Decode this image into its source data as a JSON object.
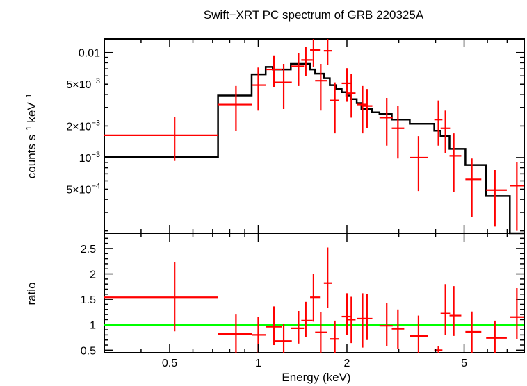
{
  "chart_data": {
    "title": "Swift−XRT PC spectrum of GRB 220325A",
    "type": "scatter",
    "colors": {
      "data": "#ff0000",
      "model": "#000000",
      "unity": "#00ff00",
      "frame": "#000000"
    },
    "xlabel": "Energy (keV)",
    "xscale": "log",
    "xlim": [
      0.3,
      8.0
    ],
    "x_ticks": [
      {
        "value": 0.5,
        "label": "0.5"
      },
      {
        "value": 1,
        "label": "1"
      },
      {
        "value": 2,
        "label": "2"
      },
      {
        "value": 5,
        "label": "5"
      }
    ],
    "spectrum_panel": {
      "ylabel_main": "counts s",
      "ylabel_exp1": "−1",
      "ylabel_mid": " keV",
      "ylabel_exp2": "−1",
      "yscale": "log",
      "ylim": [
        0.00019,
        0.0135
      ],
      "y_ticks": [
        {
          "value": 0.01,
          "mantissa": "0.01",
          "exponent": ""
        },
        {
          "value": 0.005,
          "mantissa": "5×10",
          "exponent": "−3"
        },
        {
          "value": 0.002,
          "mantissa": "2×10",
          "exponent": "−3"
        },
        {
          "value": 0.001,
          "mantissa": "10",
          "exponent": "−3"
        },
        {
          "value": 0.0005,
          "mantissa": "5×10",
          "exponent": "−4"
        }
      ],
      "data_points": [
        {
          "x": 0.52,
          "xlo": 0.3,
          "xhi": 0.73,
          "y": 0.00163,
          "ylo": 0.00093,
          "yhi": 0.00245
        },
        {
          "x": 0.84,
          "xlo": 0.73,
          "xhi": 0.95,
          "y": 0.0032,
          "ylo": 0.0018,
          "yhi": 0.0048
        },
        {
          "x": 1.0,
          "xlo": 0.95,
          "xhi": 1.06,
          "y": 0.0049,
          "ylo": 0.0028,
          "yhi": 0.0072
        },
        {
          "x": 1.13,
          "xlo": 1.06,
          "xhi": 1.2,
          "y": 0.0069,
          "ylo": 0.0047,
          "yhi": 0.0094
        },
        {
          "x": 1.22,
          "xlo": 1.12,
          "xhi": 1.3,
          "y": 0.0052,
          "ylo": 0.0029,
          "yhi": 0.0078
        },
        {
          "x": 1.37,
          "xlo": 1.29,
          "xhi": 1.43,
          "y": 0.0074,
          "ylo": 0.0048,
          "yhi": 0.0099
        },
        {
          "x": 1.45,
          "xlo": 1.4,
          "xhi": 1.53,
          "y": 0.0085,
          "ylo": 0.006,
          "yhi": 0.0113
        },
        {
          "x": 1.54,
          "xlo": 1.5,
          "xhi": 1.62,
          "y": 0.0106,
          "ylo": 0.0073,
          "yhi": 0.0135
        },
        {
          "x": 1.63,
          "xlo": 1.56,
          "xhi": 1.71,
          "y": 0.0054,
          "ylo": 0.0028,
          "yhi": 0.0078
        },
        {
          "x": 1.72,
          "xlo": 1.67,
          "xhi": 1.78,
          "y": 0.0104,
          "ylo": 0.0076,
          "yhi": 0.0135
        },
        {
          "x": 1.82,
          "xlo": 1.75,
          "xhi": 1.88,
          "y": 0.0035,
          "ylo": 0.0017,
          "yhi": 0.0052
        },
        {
          "x": 2.0,
          "xlo": 1.92,
          "xhi": 2.07,
          "y": 0.0051,
          "ylo": 0.0034,
          "yhi": 0.0071
        },
        {
          "x": 2.07,
          "xlo": 1.99,
          "xhi": 2.14,
          "y": 0.0041,
          "ylo": 0.0024,
          "yhi": 0.0063
        },
        {
          "x": 2.26,
          "xlo": 2.16,
          "xhi": 2.35,
          "y": 0.0032,
          "ylo": 0.0017,
          "yhi": 0.0048
        },
        {
          "x": 2.34,
          "xlo": 2.24,
          "xhi": 2.44,
          "y": 0.0031,
          "ylo": 0.0019,
          "yhi": 0.0045
        },
        {
          "x": 2.73,
          "xlo": 2.58,
          "xhi": 2.86,
          "y": 0.0024,
          "ylo": 0.0013,
          "yhi": 0.0037
        },
        {
          "x": 2.98,
          "xlo": 2.84,
          "xhi": 3.13,
          "y": 0.0019,
          "ylo": 0.00098,
          "yhi": 0.0031
        },
        {
          "x": 3.5,
          "xlo": 3.27,
          "xhi": 3.76,
          "y": 0.001,
          "ylo": 0.00048,
          "yhi": 0.0016
        },
        {
          "x": 4.09,
          "xlo": 3.96,
          "xhi": 4.22,
          "y": 0.0023,
          "ylo": 0.0013,
          "yhi": 0.0035
        },
        {
          "x": 4.32,
          "xlo": 4.16,
          "xhi": 4.48,
          "y": 0.0019,
          "ylo": 0.0011,
          "yhi": 0.0028
        },
        {
          "x": 4.61,
          "xlo": 4.46,
          "xhi": 4.89,
          "y": 0.00104,
          "ylo": 0.00047,
          "yhi": 0.0017
        },
        {
          "x": 5.31,
          "xlo": 5.05,
          "xhi": 5.72,
          "y": 0.00062,
          "ylo": 0.00027,
          "yhi": 0.00098
        },
        {
          "x": 6.36,
          "xlo": 5.94,
          "xhi": 6.98,
          "y": 0.00049,
          "ylo": 0.00022,
          "yhi": 0.00076
        },
        {
          "x": 7.55,
          "xlo": 7.15,
          "xhi": 8.0,
          "y": 0.00054,
          "ylo": 0.0002,
          "yhi": 0.00091
        }
      ],
      "model_steps": [
        {
          "x0": 0.3,
          "x1": 0.73,
          "y": 0.00101
        },
        {
          "x0": 0.73,
          "x1": 0.95,
          "y": 0.0039
        },
        {
          "x0": 0.95,
          "x1": 1.06,
          "y": 0.0062
        },
        {
          "x0": 1.06,
          "x1": 1.12,
          "y": 0.0073
        },
        {
          "x0": 1.12,
          "x1": 1.29,
          "y": 0.0069
        },
        {
          "x0": 1.29,
          "x1": 1.4,
          "y": 0.0078
        },
        {
          "x0": 1.4,
          "x1": 1.5,
          "y": 0.0078
        },
        {
          "x0": 1.5,
          "x1": 1.56,
          "y": 0.0069
        },
        {
          "x0": 1.56,
          "x1": 1.67,
          "y": 0.0063
        },
        {
          "x0": 1.67,
          "x1": 1.75,
          "y": 0.0057
        },
        {
          "x0": 1.75,
          "x1": 1.84,
          "y": 0.0049
        },
        {
          "x0": 1.84,
          "x1": 1.92,
          "y": 0.0045
        },
        {
          "x0": 1.92,
          "x1": 1.99,
          "y": 0.0042
        },
        {
          "x0": 1.99,
          "x1": 2.07,
          "y": 0.0039
        },
        {
          "x0": 2.07,
          "x1": 2.16,
          "y": 0.0036
        },
        {
          "x0": 2.16,
          "x1": 2.24,
          "y": 0.0033
        },
        {
          "x0": 2.24,
          "x1": 2.43,
          "y": 0.0029
        },
        {
          "x0": 2.43,
          "x1": 2.58,
          "y": 0.0027
        },
        {
          "x0": 2.58,
          "x1": 2.84,
          "y": 0.0026
        },
        {
          "x0": 2.84,
          "x1": 3.27,
          "y": 0.0023
        },
        {
          "x0": 3.27,
          "x1": 3.96,
          "y": 0.0021
        },
        {
          "x0": 3.96,
          "x1": 4.16,
          "y": 0.0018
        },
        {
          "x0": 4.16,
          "x1": 4.46,
          "y": 0.0016
        },
        {
          "x0": 4.46,
          "x1": 5.05,
          "y": 0.00121
        },
        {
          "x0": 5.05,
          "x1": 5.94,
          "y": 0.00085
        },
        {
          "x0": 5.94,
          "x1": 7.15,
          "y": 0.00043
        },
        {
          "x0": 7.15,
          "x1": 8.0,
          "y": 0.00019
        }
      ]
    },
    "ratio_panel": {
      "ylabel": "ratio",
      "ylim": [
        0.45,
        2.8
      ],
      "y_ticks": [
        {
          "value": 0.5,
          "label": "0.5"
        },
        {
          "value": 1,
          "label": "1"
        },
        {
          "value": 1.5,
          "label": "1.5"
        },
        {
          "value": 2,
          "label": "2"
        },
        {
          "value": 2.5,
          "label": "2.5"
        }
      ],
      "unity_line": 1,
      "data_points": [
        {
          "x": 0.52,
          "xlo": 0.3,
          "xhi": 0.73,
          "y": 1.54,
          "ylo": 0.87,
          "yhi": 2.24
        },
        {
          "x": 0.84,
          "xlo": 0.73,
          "xhi": 0.95,
          "y": 0.82,
          "ylo": 0.45,
          "yhi": 1.2
        },
        {
          "x": 1.0,
          "xlo": 0.95,
          "xhi": 1.06,
          "y": 0.8,
          "ylo": 0.45,
          "yhi": 1.15
        },
        {
          "x": 1.13,
          "xlo": 1.06,
          "xhi": 1.2,
          "y": 0.96,
          "ylo": 0.6,
          "yhi": 1.36
        },
        {
          "x": 1.22,
          "xlo": 1.12,
          "xhi": 1.3,
          "y": 0.68,
          "ylo": 0.45,
          "yhi": 1.02
        },
        {
          "x": 1.37,
          "xlo": 1.29,
          "xhi": 1.43,
          "y": 0.93,
          "ylo": 0.63,
          "yhi": 1.27
        },
        {
          "x": 1.45,
          "xlo": 1.4,
          "xhi": 1.53,
          "y": 1.08,
          "ylo": 0.76,
          "yhi": 1.45
        },
        {
          "x": 1.54,
          "xlo": 1.5,
          "xhi": 1.62,
          "y": 1.54,
          "ylo": 1.06,
          "yhi": 2.0
        },
        {
          "x": 1.63,
          "xlo": 1.56,
          "xhi": 1.71,
          "y": 0.85,
          "ylo": 0.45,
          "yhi": 1.25
        },
        {
          "x": 1.72,
          "xlo": 1.67,
          "xhi": 1.78,
          "y": 1.82,
          "ylo": 1.33,
          "yhi": 2.52
        },
        {
          "x": 1.82,
          "xlo": 1.75,
          "xhi": 1.88,
          "y": 0.72,
          "ylo": 0.45,
          "yhi": 1.08
        },
        {
          "x": 2.0,
          "xlo": 1.92,
          "xhi": 2.07,
          "y": 1.16,
          "ylo": 0.8,
          "yhi": 1.62
        },
        {
          "x": 2.07,
          "xlo": 1.99,
          "xhi": 2.14,
          "y": 1.1,
          "ylo": 0.64,
          "yhi": 1.55
        },
        {
          "x": 2.26,
          "xlo": 2.16,
          "xhi": 2.35,
          "y": 1.12,
          "ylo": 0.55,
          "yhi": 1.62
        },
        {
          "x": 2.34,
          "xlo": 2.24,
          "xhi": 2.44,
          "y": 1.12,
          "ylo": 0.7,
          "yhi": 1.6
        },
        {
          "x": 2.73,
          "xlo": 2.58,
          "xhi": 2.86,
          "y": 0.98,
          "ylo": 0.58,
          "yhi": 1.42
        },
        {
          "x": 2.98,
          "xlo": 2.84,
          "xhi": 3.13,
          "y": 0.92,
          "ylo": 0.52,
          "yhi": 1.3
        },
        {
          "x": 3.5,
          "xlo": 3.27,
          "xhi": 3.76,
          "y": 0.78,
          "ylo": 0.45,
          "yhi": 1.18
        },
        {
          "x": 4.09,
          "xlo": 3.96,
          "xhi": 4.22,
          "y": 0.5,
          "ylo": 0.45,
          "yhi": 0.58
        },
        {
          "x": 4.32,
          "xlo": 4.16,
          "xhi": 4.48,
          "y": 1.22,
          "ylo": 0.8,
          "yhi": 1.8
        },
        {
          "x": 4.61,
          "xlo": 4.46,
          "xhi": 4.89,
          "y": 1.18,
          "ylo": 0.78,
          "yhi": 1.76
        },
        {
          "x": 5.31,
          "xlo": 5.05,
          "xhi": 5.72,
          "y": 0.86,
          "ylo": 0.45,
          "yhi": 1.26
        },
        {
          "x": 6.36,
          "xlo": 5.94,
          "xhi": 6.98,
          "y": 0.74,
          "ylo": 0.45,
          "yhi": 1.08
        },
        {
          "x": 7.55,
          "xlo": 7.15,
          "xhi": 8.0,
          "y": 1.15,
          "ylo": 0.72,
          "yhi": 1.72
        }
      ]
    }
  }
}
